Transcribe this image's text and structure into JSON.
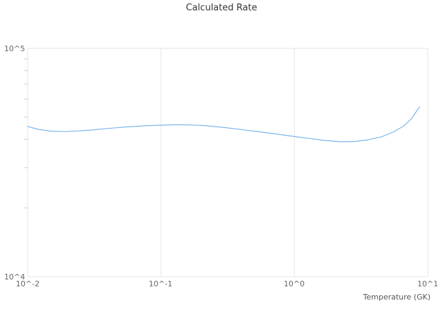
{
  "chart_data": {
    "type": "line",
    "title": "Calculated Rate",
    "xlabel": "Temperature (GK)",
    "ylabel": "",
    "xscale": "log",
    "yscale": "log",
    "xlim": [
      0.01,
      10
    ],
    "ylim": [
      10000,
      100000
    ],
    "x_ticks": [
      0.01,
      0.1,
      1,
      10
    ],
    "x_tick_labels": [
      "10^-2",
      "10^-1",
      "10^0",
      "10^1"
    ],
    "y_ticks": [
      10000,
      100000
    ],
    "y_tick_labels": [
      "10^4",
      "10^5"
    ],
    "grid": true,
    "legend_position": "none",
    "colors": {
      "line": "#7cb5ec",
      "grid": "#e6e6e6",
      "minor_tick": "#cccccc",
      "title_text": "#333333",
      "tick_text": "#666666",
      "axis_label_text": "#555555",
      "background": "#ffffff"
    },
    "series": [
      {
        "name": "Calculated Rate",
        "color": "#7cb5ec",
        "x": [
          0.01,
          0.012,
          0.015,
          0.019,
          0.024,
          0.03,
          0.04,
          0.055,
          0.075,
          0.1,
          0.13,
          0.17,
          0.22,
          0.3,
          0.4,
          0.55,
          0.75,
          1.0,
          1.3,
          1.7,
          2.2,
          2.8,
          3.5,
          4.5,
          5.5,
          6.5,
          7.5,
          8.7
        ],
        "y": [
          45500,
          44200,
          43400,
          43200,
          43500,
          43900,
          44600,
          45300,
          45800,
          46100,
          46300,
          46200,
          45800,
          45000,
          44100,
          43100,
          42100,
          41100,
          40300,
          39500,
          39000,
          39100,
          39700,
          41000,
          43000,
          45500,
          49000,
          55500
        ]
      }
    ]
  }
}
